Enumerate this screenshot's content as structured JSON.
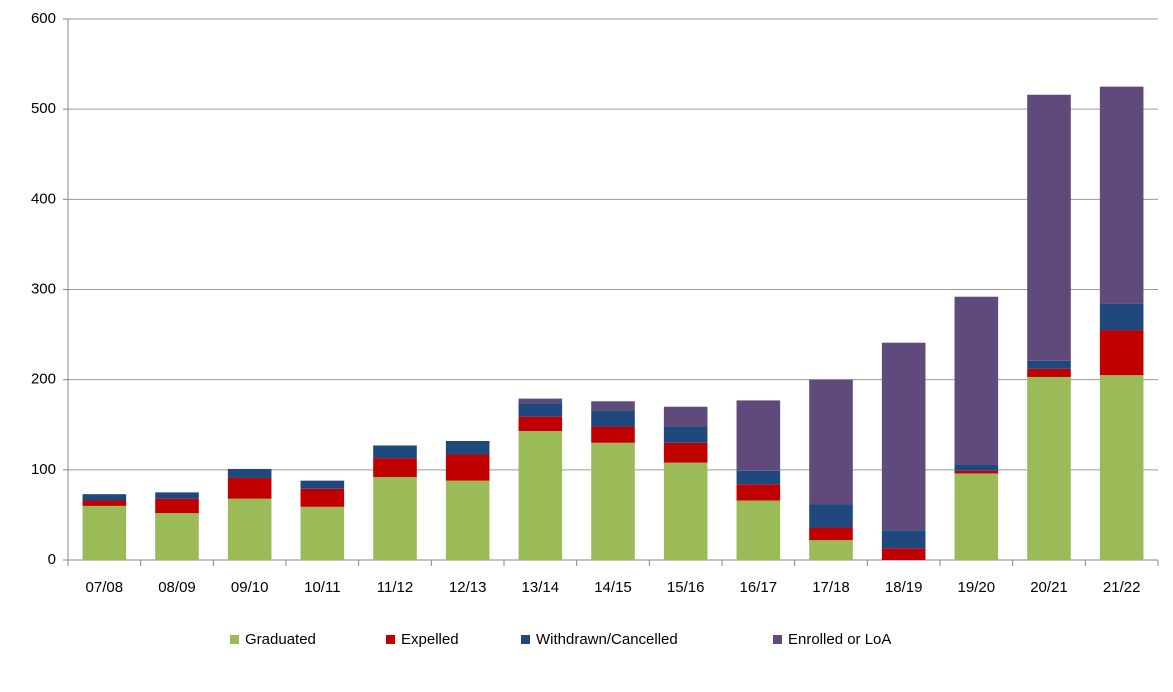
{
  "chart_data": {
    "type": "stacked-bar",
    "categories": [
      "07/08",
      "08/09",
      "09/10",
      "10/11",
      "11/12",
      "12/13",
      "13/14",
      "14/15",
      "15/16",
      "16/17",
      "17/18",
      "18/19",
      "19/20",
      "20/21",
      "21/22"
    ],
    "series": [
      {
        "name": "Graduated",
        "color": "#9bbb59",
        "values": [
          60,
          52,
          68,
          59,
          92,
          88,
          143,
          130,
          108,
          66,
          22,
          0,
          96,
          203,
          205
        ]
      },
      {
        "name": "Expelled",
        "color": "#c00000",
        "values": [
          6,
          16,
          23,
          20,
          21,
          29,
          16,
          18,
          22,
          18,
          14,
          13,
          3,
          9,
          50
        ]
      },
      {
        "name": "Withdrawn/Cancelled",
        "color": "#1f497d",
        "values": [
          7,
          7,
          10,
          9,
          14,
          15,
          15,
          18,
          18,
          15,
          26,
          20,
          7,
          9,
          29
        ]
      },
      {
        "name": "Enrolled or LoA",
        "color": "#604a7b",
        "values": [
          0,
          0,
          0,
          0,
          0,
          0,
          5,
          10,
          22,
          78,
          138,
          208,
          186,
          295,
          241
        ]
      }
    ],
    "ylim": [
      0,
      600
    ],
    "yticks": [
      0,
      100,
      200,
      300,
      400,
      500,
      600
    ],
    "grid": true,
    "legend": "bottom"
  }
}
